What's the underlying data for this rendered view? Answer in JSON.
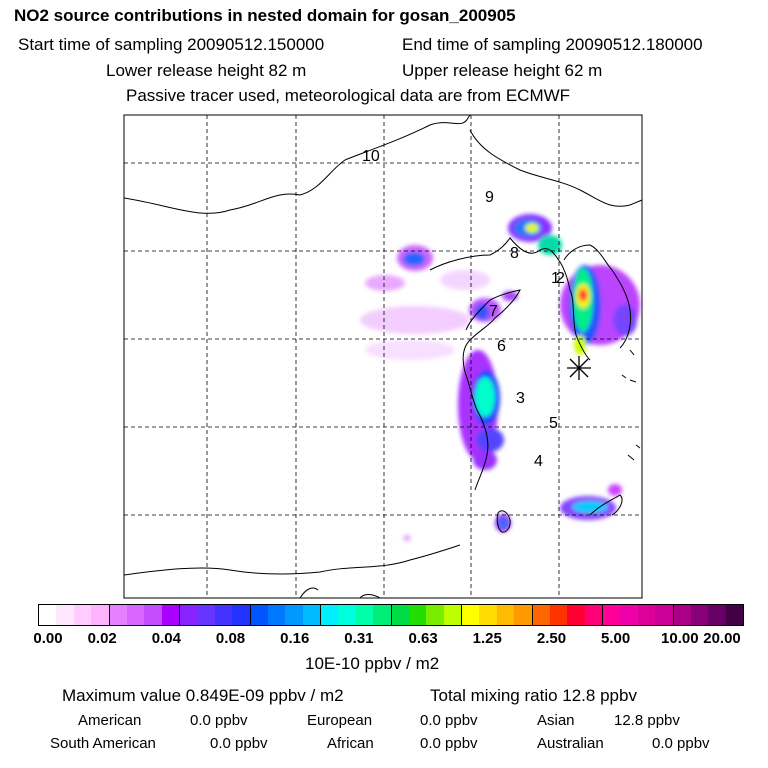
{
  "header": {
    "title": "NO2 source contributions in nested domain for gosan_200905",
    "start_time": "Start time of sampling 20090512.150000",
    "end_time": "End time of sampling 20090512.180000",
    "lower_release": "Lower release height   82 m",
    "upper_release": "Upper release height   62 m",
    "tracer_note": "Passive tracer used, meteorological data are from ECMWF"
  },
  "map": {
    "region_labels": [
      "10",
      "9",
      "8",
      "1",
      "2",
      "7",
      "6",
      "3",
      "5",
      "4"
    ],
    "receptor_marker": "receptor-star"
  },
  "colorbar": {
    "colors": [
      "#ffffff",
      "#ffe6ff",
      "#ffccff",
      "#ffb3ff",
      "#e680ff",
      "#d966ff",
      "#c44dff",
      "#aa00ff",
      "#8822ff",
      "#6633ff",
      "#4433ff",
      "#2233ff",
      "#0055ff",
      "#0077ff",
      "#0099ff",
      "#00bbff",
      "#00eeff",
      "#00ffdd",
      "#00ffaa",
      "#00ee77",
      "#00dd44",
      "#22dd00",
      "#77ee00",
      "#bbff00",
      "#ffff00",
      "#ffdd00",
      "#ffbb00",
      "#ff9900",
      "#ff6600",
      "#ff3300",
      "#ff0033",
      "#ff0077",
      "#ff0099",
      "#ee00aa",
      "#dd0099",
      "#cc0099",
      "#aa0088",
      "#880077",
      "#660066",
      "#440044"
    ],
    "ticks": [
      "0.00",
      "0.02",
      "0.04",
      "0.08",
      "0.16",
      "0.31",
      "0.63",
      "1.25",
      "2.50",
      "5.00",
      "10.00",
      "20.00"
    ],
    "units": "10E-10 ppbv / m2"
  },
  "summary": {
    "max_value": "Maximum value  0.849E-09 ppbv / m2",
    "total_mixing": "Total mixing ratio       12.8 ppbv",
    "regions": [
      {
        "name": "American",
        "value": "0.0 ppbv"
      },
      {
        "name": "European",
        "value": "0.0 ppbv"
      },
      {
        "name": "Asian",
        "value": "12.8 ppbv"
      },
      {
        "name": "South American",
        "value": "0.0 ppbv"
      },
      {
        "name": "African",
        "value": "0.0 ppbv"
      },
      {
        "name": "Australian",
        "value": "0.0 ppbv"
      }
    ]
  }
}
